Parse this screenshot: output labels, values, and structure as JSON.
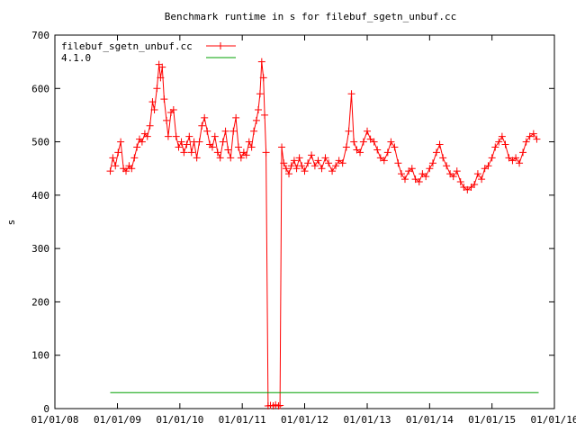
{
  "chart_data": {
    "type": "line",
    "title": "Benchmark runtime in s for filebuf_sgetn_unbuf.cc",
    "xlabel": "",
    "ylabel": "s",
    "x_ticks": [
      "01/01/08",
      "01/01/09",
      "01/01/10",
      "01/01/11",
      "01/01/12",
      "01/01/13",
      "01/01/14",
      "01/01/15",
      "01/01/16"
    ],
    "xlim": [
      "2008-01-01",
      "2016-01-01"
    ],
    "ylim": [
      0,
      700
    ],
    "y_ticks": [
      0,
      100,
      200,
      300,
      400,
      500,
      600,
      700
    ],
    "grid": false,
    "legend_position": "top-left",
    "series": [
      {
        "name": "filebuf_sgetn_unbuf.cc",
        "color": "#ff0000",
        "marker": "plus",
        "points": [
          [
            "2008-11-20",
            445
          ],
          [
            "2008-12-05",
            470
          ],
          [
            "2008-12-20",
            455
          ],
          [
            "2009-01-05",
            480
          ],
          [
            "2009-01-20",
            500
          ],
          [
            "2009-02-05",
            450
          ],
          [
            "2009-02-20",
            445
          ],
          [
            "2009-03-10",
            455
          ],
          [
            "2009-03-25",
            450
          ],
          [
            "2009-04-10",
            470
          ],
          [
            "2009-04-25",
            490
          ],
          [
            "2009-05-10",
            505
          ],
          [
            "2009-05-25",
            500
          ],
          [
            "2009-06-10",
            515
          ],
          [
            "2009-06-25",
            510
          ],
          [
            "2009-07-10",
            530
          ],
          [
            "2009-07-25",
            575
          ],
          [
            "2009-08-05",
            560
          ],
          [
            "2009-08-20",
            600
          ],
          [
            "2009-09-01",
            645
          ],
          [
            "2009-09-10",
            620
          ],
          [
            "2009-09-20",
            640
          ],
          [
            "2009-10-01",
            580
          ],
          [
            "2009-10-15",
            540
          ],
          [
            "2009-10-25",
            510
          ],
          [
            "2009-11-10",
            555
          ],
          [
            "2009-11-25",
            560
          ],
          [
            "2009-12-10",
            510
          ],
          [
            "2009-12-25",
            490
          ],
          [
            "2010-01-10",
            500
          ],
          [
            "2010-01-25",
            480
          ],
          [
            "2010-02-10",
            495
          ],
          [
            "2010-02-25",
            510
          ],
          [
            "2010-03-10",
            480
          ],
          [
            "2010-03-25",
            500
          ],
          [
            "2010-04-10",
            470
          ],
          [
            "2010-04-25",
            500
          ],
          [
            "2010-05-10",
            530
          ],
          [
            "2010-05-25",
            545
          ],
          [
            "2010-06-10",
            520
          ],
          [
            "2010-06-25",
            495
          ],
          [
            "2010-07-10",
            490
          ],
          [
            "2010-07-25",
            510
          ],
          [
            "2010-08-10",
            480
          ],
          [
            "2010-08-25",
            470
          ],
          [
            "2010-09-10",
            500
          ],
          [
            "2010-09-25",
            520
          ],
          [
            "2010-10-10",
            485
          ],
          [
            "2010-10-25",
            470
          ],
          [
            "2010-11-10",
            520
          ],
          [
            "2010-11-25",
            545
          ],
          [
            "2010-12-10",
            490
          ],
          [
            "2010-12-25",
            470
          ],
          [
            "2011-01-10",
            480
          ],
          [
            "2011-01-25",
            475
          ],
          [
            "2011-02-10",
            500
          ],
          [
            "2011-02-25",
            490
          ],
          [
            "2011-03-10",
            520
          ],
          [
            "2011-03-25",
            540
          ],
          [
            "2011-04-05",
            560
          ],
          [
            "2011-04-15",
            590
          ],
          [
            "2011-04-25",
            650
          ],
          [
            "2011-05-05",
            620
          ],
          [
            "2011-05-12",
            550
          ],
          [
            "2011-05-20",
            480
          ],
          [
            "2011-06-01",
            5
          ],
          [
            "2011-06-15",
            6
          ],
          [
            "2011-07-01",
            5
          ],
          [
            "2011-07-15",
            7
          ],
          [
            "2011-08-01",
            5
          ],
          [
            "2011-08-10",
            6
          ],
          [
            "2011-08-20",
            490
          ],
          [
            "2011-09-01",
            460
          ],
          [
            "2011-09-15",
            450
          ],
          [
            "2011-10-01",
            440
          ],
          [
            "2011-10-15",
            455
          ],
          [
            "2011-11-01",
            465
          ],
          [
            "2011-11-15",
            450
          ],
          [
            "2011-12-01",
            470
          ],
          [
            "2011-12-15",
            455
          ],
          [
            "2012-01-01",
            445
          ],
          [
            "2012-01-20",
            460
          ],
          [
            "2012-02-10",
            475
          ],
          [
            "2012-03-01",
            455
          ],
          [
            "2012-03-20",
            465
          ],
          [
            "2012-04-10",
            450
          ],
          [
            "2012-05-01",
            470
          ],
          [
            "2012-05-20",
            460
          ],
          [
            "2012-06-10",
            445
          ],
          [
            "2012-07-01",
            455
          ],
          [
            "2012-07-20",
            465
          ],
          [
            "2012-08-10",
            460
          ],
          [
            "2012-09-01",
            490
          ],
          [
            "2012-09-15",
            520
          ],
          [
            "2012-10-01",
            590
          ],
          [
            "2012-10-15",
            500
          ],
          [
            "2012-11-01",
            485
          ],
          [
            "2012-11-20",
            480
          ],
          [
            "2012-12-10",
            500
          ],
          [
            "2013-01-01",
            520
          ],
          [
            "2013-01-20",
            505
          ],
          [
            "2013-02-10",
            500
          ],
          [
            "2013-03-01",
            485
          ],
          [
            "2013-03-20",
            470
          ],
          [
            "2013-04-10",
            465
          ],
          [
            "2013-05-01",
            480
          ],
          [
            "2013-05-20",
            500
          ],
          [
            "2013-06-10",
            490
          ],
          [
            "2013-07-01",
            460
          ],
          [
            "2013-07-20",
            440
          ],
          [
            "2013-08-10",
            430
          ],
          [
            "2013-09-01",
            445
          ],
          [
            "2013-09-20",
            450
          ],
          [
            "2013-10-10",
            430
          ],
          [
            "2013-11-01",
            425
          ],
          [
            "2013-11-20",
            440
          ],
          [
            "2013-12-10",
            435
          ],
          [
            "2014-01-01",
            450
          ],
          [
            "2014-01-20",
            460
          ],
          [
            "2014-02-10",
            480
          ],
          [
            "2014-03-01",
            495
          ],
          [
            "2014-03-20",
            470
          ],
          [
            "2014-04-10",
            455
          ],
          [
            "2014-05-01",
            440
          ],
          [
            "2014-05-20",
            435
          ],
          [
            "2014-06-10",
            445
          ],
          [
            "2014-07-01",
            425
          ],
          [
            "2014-07-20",
            415
          ],
          [
            "2014-08-10",
            410
          ],
          [
            "2014-09-01",
            415
          ],
          [
            "2014-09-20",
            420
          ],
          [
            "2014-10-10",
            440
          ],
          [
            "2014-11-01",
            430
          ],
          [
            "2014-11-20",
            450
          ],
          [
            "2014-12-10",
            455
          ],
          [
            "2015-01-01",
            470
          ],
          [
            "2015-01-20",
            490
          ],
          [
            "2015-02-10",
            500
          ],
          [
            "2015-03-01",
            510
          ],
          [
            "2015-03-20",
            495
          ],
          [
            "2015-04-10",
            470
          ],
          [
            "2015-05-01",
            465
          ],
          [
            "2015-05-20",
            470
          ],
          [
            "2015-06-10",
            460
          ],
          [
            "2015-07-01",
            480
          ],
          [
            "2015-07-20",
            500
          ],
          [
            "2015-08-10",
            510
          ],
          [
            "2015-09-01",
            515
          ],
          [
            "2015-09-20",
            505
          ]
        ]
      },
      {
        "name": "4.1.0",
        "color": "#00a000",
        "marker": "none",
        "points": [
          [
            "2008-11-20",
            30
          ],
          [
            "2015-10-01",
            30
          ]
        ]
      }
    ]
  }
}
